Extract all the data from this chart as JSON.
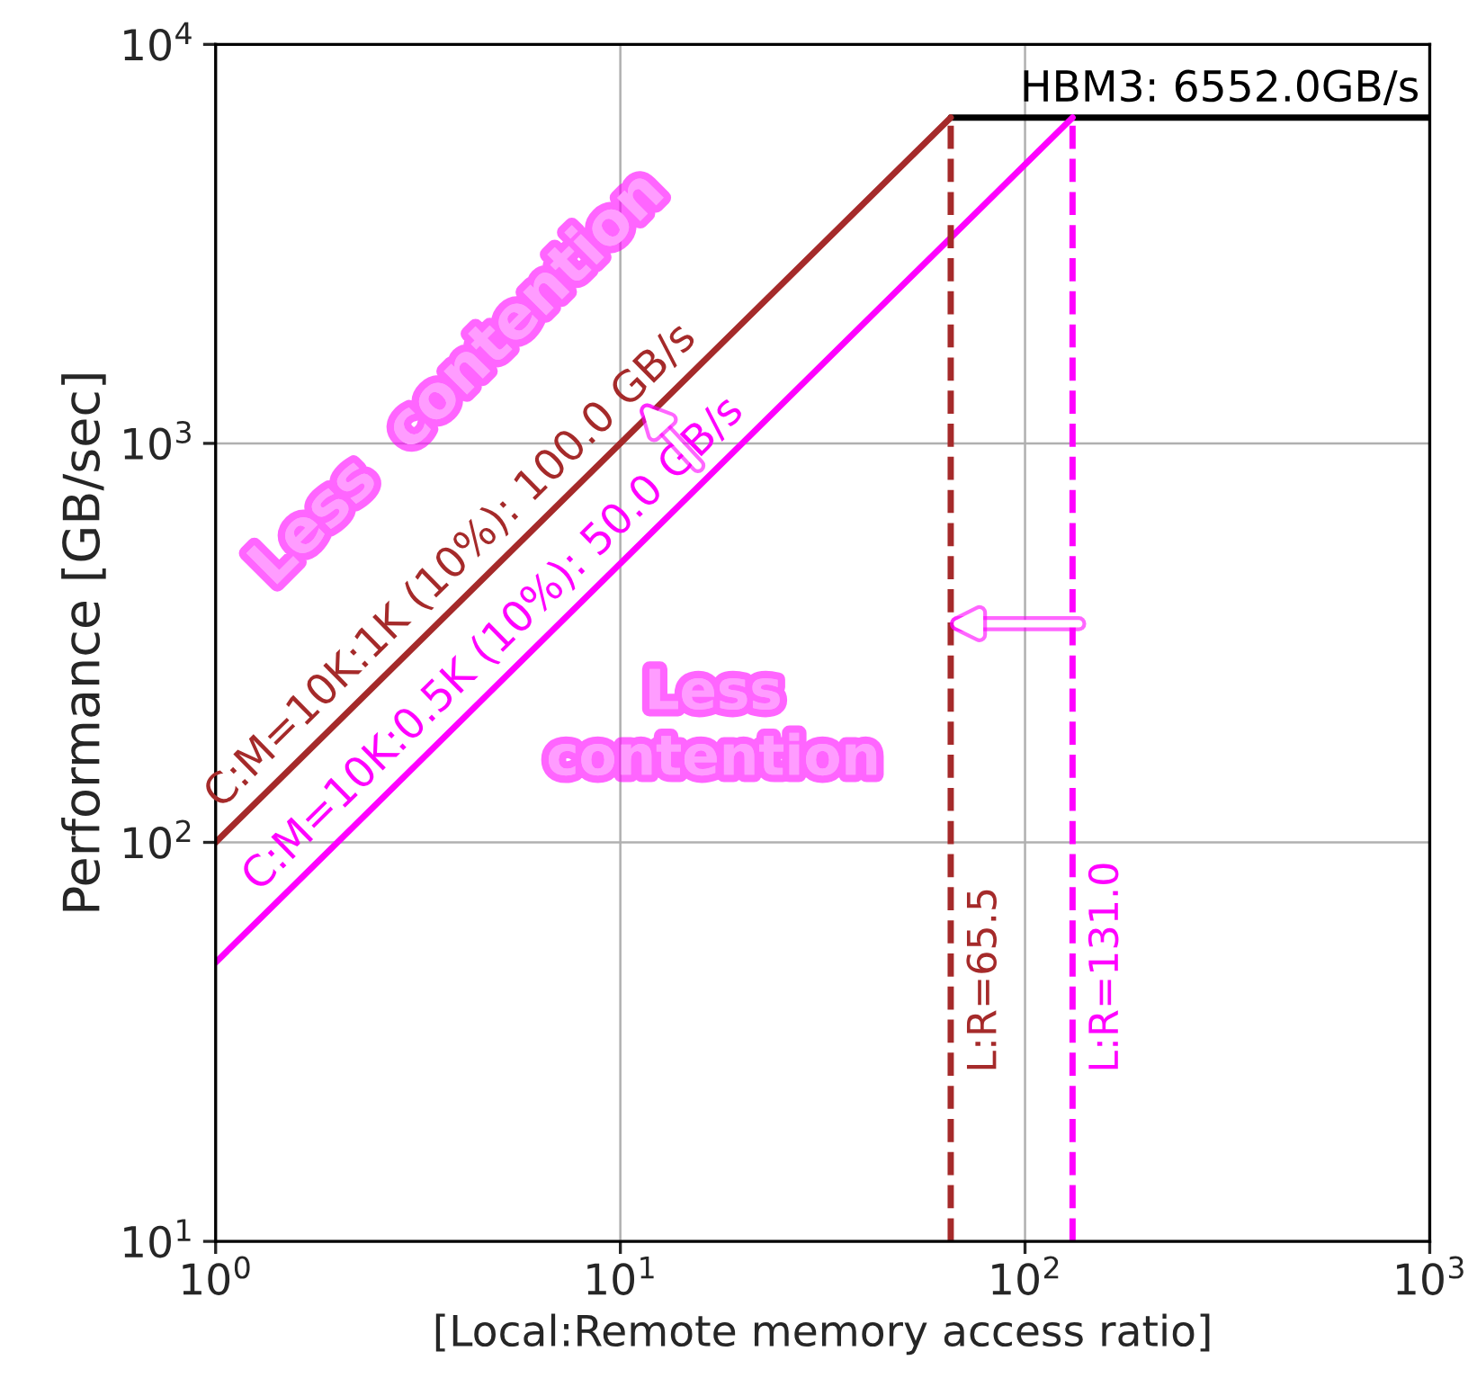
{
  "chart_data": {
    "type": "line",
    "xlabel": "[Local:Remote memory access ratio]",
    "ylabel": "Performance [GB/sec]",
    "log": "xy",
    "grid": true,
    "xlim": [
      1,
      1000
    ],
    "ylim": [
      10,
      10000
    ],
    "xticks": [
      {
        "value": 1,
        "label": "10$^{0}$"
      },
      {
        "value": 10,
        "label": "10$^{1}$"
      },
      {
        "value": 100,
        "label": "10$^{2}$"
      },
      {
        "value": 1000,
        "label": "10$^{3}$"
      }
    ],
    "yticks": [
      {
        "value": 10,
        "label": "10$^{1}$"
      },
      {
        "value": 100,
        "label": "10$^{2}$"
      },
      {
        "value": 1000,
        "label": "10$^{3}$"
      },
      {
        "value": 10000,
        "label": "10$^{4}$"
      }
    ],
    "series": [
      {
        "name": "HBM3: 6552.0GB/s",
        "color": "#000000",
        "line_style": "solid",
        "x": [
          65.52,
          1000
        ],
        "values": [
          6552,
          6552
        ]
      },
      {
        "name": "C:M=10K:1K (10%): 100.0 GB/s",
        "color": "#a52a2a",
        "line_style": "solid",
        "x": [
          1,
          65.52
        ],
        "values": [
          100,
          6552
        ]
      },
      {
        "name": "C:M=10K:0.5K (10%): 50.0 GB/s",
        "color": "#ff00ff",
        "line_style": "solid",
        "x": [
          1,
          131.04
        ],
        "values": [
          50,
          6552
        ]
      },
      {
        "name": "L:R=65.5",
        "color": "#a52a2a",
        "line_style": "dashed",
        "x": [
          65.52,
          65.52
        ],
        "values": [
          10,
          6552
        ]
      },
      {
        "name": "L:R=131.0",
        "color": "#ff00ff",
        "line_style": "dashed",
        "x": [
          131.04,
          131.04
        ],
        "values": [
          10,
          6552
        ]
      }
    ],
    "annotations": [
      "Less  contention",
      "Less\ncontention"
    ]
  }
}
